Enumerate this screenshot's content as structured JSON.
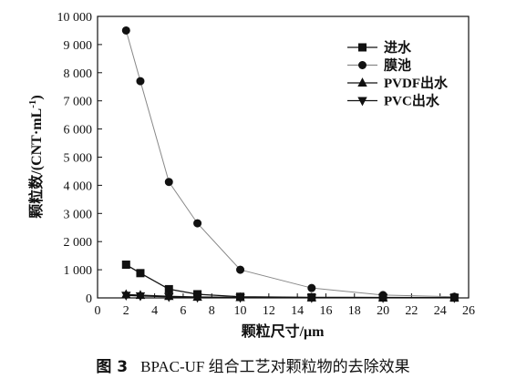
{
  "chart_data": {
    "type": "line",
    "xlabel": "颗粒尺寸/μm",
    "ylabel": "颗粒数/(CNT·mL",
    "ylabel_sup": "-1",
    "ylabel_end": ")",
    "xlim": [
      0,
      26
    ],
    "ylim": [
      0,
      10000
    ],
    "xticks": [
      0,
      2,
      4,
      6,
      8,
      10,
      12,
      14,
      16,
      18,
      20,
      22,
      24,
      26
    ],
    "xtick_labels": [
      "0",
      "2",
      "4",
      "6",
      "8",
      "10",
      "12",
      "14",
      "16",
      "18",
      "20",
      "22",
      "24",
      "26"
    ],
    "yticks": [
      0,
      1000,
      2000,
      3000,
      4000,
      5000,
      6000,
      7000,
      8000,
      9000,
      10000
    ],
    "ytick_labels": [
      "0",
      "1 000",
      "2 000",
      "3 000",
      "4 000",
      "5 000",
      "6 000",
      "7 000",
      "8 000",
      "9 000",
      "10 000"
    ],
    "grid": false,
    "legend_position": "top-right",
    "series": [
      {
        "name": "进水",
        "marker": "square",
        "x": [
          2,
          3,
          5,
          7,
          10,
          15,
          20,
          25
        ],
        "values": [
          1180,
          880,
          310,
          130,
          40,
          20,
          15,
          10
        ]
      },
      {
        "name": "膜池",
        "marker": "circle",
        "x": [
          2,
          3,
          5,
          7,
          10,
          15,
          20,
          25
        ],
        "values": [
          9500,
          7700,
          4120,
          2650,
          1000,
          350,
          100,
          40
        ]
      },
      {
        "name": "PVDF出水",
        "marker": "triangle-up",
        "x": [
          2,
          3,
          5,
          7,
          10,
          15,
          20,
          25
        ],
        "values": [
          120,
          95,
          55,
          30,
          15,
          10,
          5,
          5
        ]
      },
      {
        "name": "PVC出水",
        "marker": "triangle-down",
        "x": [
          2,
          3,
          5,
          7,
          10,
          15,
          20,
          25
        ],
        "values": [
          90,
          70,
          40,
          20,
          10,
          5,
          5,
          5
        ]
      }
    ]
  },
  "caption": {
    "number": "图 3",
    "text": "BPAC-UF 组合工艺对颗粒物的去除效果"
  }
}
